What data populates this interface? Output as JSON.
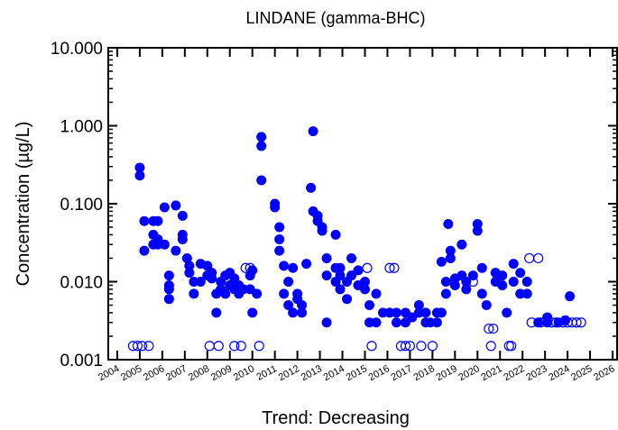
{
  "chart_data": {
    "type": "scatter",
    "title": "LINDANE (gamma-BHC)",
    "x_label": "Trend: Decreasing",
    "y_label": "Concentration (µg/L)",
    "y_log": true,
    "xlim": [
      2003.6,
      2026.2
    ],
    "ylim": [
      0.001,
      10
    ],
    "xticks": [
      2004,
      2005,
      2006,
      2007,
      2008,
      2009,
      2010,
      2011,
      2012,
      2013,
      2014,
      2015,
      2016,
      2017,
      2018,
      2019,
      2020,
      2021,
      2022,
      2023,
      2024,
      2025,
      2026
    ],
    "yticks": [
      {
        "value": 10,
        "label": "10.000"
      },
      {
        "value": 1,
        "label": "1.000"
      },
      {
        "value": 0.1,
        "label": "0.100"
      },
      {
        "value": 0.01,
        "label": "0.010"
      },
      {
        "value": 0.001,
        "label": "0.001"
      }
    ],
    "series": [
      {
        "color": "#0000ff",
        "marker": "filled",
        "x": [
          2005.0,
          2005.0,
          2005.2,
          2005.2,
          2005.6,
          2005.6,
          2005.6,
          2005.8,
          2005.8,
          2005.8,
          2006.1,
          2006.1,
          2006.3,
          2006.3,
          2006.3,
          2006.3,
          2006.6,
          2006.6,
          2006.9,
          2006.9,
          2006.9,
          2007.1,
          2007.2,
          2007.2,
          2007.4,
          2007.4,
          2007.7,
          2007.7,
          2008.0,
          2008.0,
          2008.2,
          2008.2,
          2008.4,
          2008.4,
          2008.6,
          2008.6,
          2008.8,
          2008.8,
          2009.0,
          2009.0,
          2009.2,
          2009.2,
          2009.4,
          2009.4,
          2009.6,
          2009.9,
          2009.9,
          2010.0,
          2010.0,
          2010.2,
          2010.4,
          2010.4,
          2010.4,
          2011.0,
          2011.0,
          2011.2,
          2011.2,
          2011.2,
          2011.4,
          2011.4,
          2011.6,
          2011.6,
          2011.8,
          2011.8,
          2012.0,
          2012.0,
          2012.2,
          2012.2,
          2012.4,
          2012.6,
          2012.7,
          2012.7,
          2012.9,
          2012.9,
          2013.1,
          2013.1,
          2013.3,
          2013.3,
          2013.3,
          2013.7,
          2013.7,
          2013.7,
          2013.9,
          2013.9,
          2013.9,
          2014.2,
          2014.2,
          2014.4,
          2014.4,
          2014.7,
          2014.7,
          2015.0,
          2015.0,
          2015.2,
          2015.2,
          2015.5,
          2015.5,
          2015.8,
          2016.1,
          2016.4,
          2016.4,
          2016.8,
          2016.8,
          2017.1,
          2017.4,
          2017.4,
          2017.7,
          2017.7,
          2017.9,
          2018.2,
          2018.2,
          2018.4,
          2018.4,
          2018.6,
          2018.6,
          2018.7,
          2018.8,
          2018.8,
          2019.0,
          2019.0,
          2019.3,
          2019.3,
          2019.5,
          2019.5,
          2019.8,
          2020.0,
          2020.0,
          2020.2,
          2020.2,
          2020.4,
          2020.8,
          2020.8,
          2021.1,
          2021.1,
          2021.3,
          2021.6,
          2021.6,
          2021.9,
          2021.9,
          2022.2,
          2022.2,
          2022.7,
          2023.1,
          2023.1,
          2023.6,
          2023.9,
          2024.1
        ],
        "values": [
          0.29,
          0.23,
          0.06,
          0.025,
          0.06,
          0.04,
          0.03,
          0.06,
          0.035,
          0.03,
          0.09,
          0.03,
          0.009,
          0.008,
          0.006,
          0.012,
          0.095,
          0.025,
          0.07,
          0.04,
          0.035,
          0.02,
          0.013,
          0.016,
          0.01,
          0.007,
          0.017,
          0.01,
          0.016,
          0.012,
          0.013,
          0.011,
          0.004,
          0.007,
          0.008,
          0.01,
          0.012,
          0.007,
          0.013,
          0.009,
          0.011,
          0.008,
          0.007,
          0.009,
          0.008,
          0.012,
          0.008,
          0.014,
          0.004,
          0.007,
          0.2,
          0.55,
          0.72,
          0.1,
          0.09,
          0.05,
          0.035,
          0.025,
          0.016,
          0.007,
          0.01,
          0.005,
          0.004,
          0.015,
          0.007,
          0.006,
          0.005,
          0.004,
          0.017,
          0.16,
          0.85,
          0.08,
          0.07,
          0.06,
          0.05,
          0.045,
          0.02,
          0.003,
          0.012,
          0.04,
          0.015,
          0.01,
          0.012,
          0.015,
          0.008,
          0.006,
          0.01,
          0.02,
          0.012,
          0.014,
          0.009,
          0.008,
          0.01,
          0.005,
          0.003,
          0.003,
          0.007,
          0.004,
          0.004,
          0.004,
          0.003,
          0.003,
          0.004,
          0.0035,
          0.004,
          0.005,
          0.003,
          0.004,
          0.003,
          0.004,
          0.003,
          0.018,
          0.004,
          0.01,
          0.007,
          0.055,
          0.025,
          0.02,
          0.011,
          0.009,
          0.03,
          0.012,
          0.01,
          0.008,
          0.012,
          0.045,
          0.055,
          0.015,
          0.007,
          0.005,
          0.01,
          0.013,
          0.012,
          0.009,
          0.004,
          0.01,
          0.017,
          0.013,
          0.007,
          0.007,
          0.01,
          0.003,
          0.0035,
          0.003,
          0.003,
          0.0032,
          0.0065
        ]
      },
      {
        "color": "#0000ff",
        "marker": "open",
        "x": [
          2004.7,
          2004.9,
          2005.1,
          2005.4,
          2008.1,
          2008.5,
          2009.2,
          2009.5,
          2009.7,
          2009.9,
          2010.3,
          2015.1,
          2015.3,
          2016.1,
          2016.3,
          2016.6,
          2016.8,
          2017.0,
          2017.5,
          2018.0,
          2019.8,
          2020.5,
          2020.7,
          2020.6,
          2021.4,
          2021.5,
          2022.3,
          2022.7,
          2022.4,
          2022.8,
          2023.3,
          2023.5,
          2023.8,
          2024.0,
          2024.2,
          2024.4,
          2024.6
        ],
        "values": [
          0.0015,
          0.0015,
          0.0015,
          0.0015,
          0.0015,
          0.0015,
          0.0015,
          0.0015,
          0.015,
          0.015,
          0.0015,
          0.015,
          0.0015,
          0.015,
          0.015,
          0.0015,
          0.0015,
          0.0015,
          0.0015,
          0.0015,
          0.01,
          0.0025,
          0.0025,
          0.0015,
          0.0015,
          0.0015,
          0.02,
          0.02,
          0.003,
          0.003,
          0.003,
          0.003,
          0.003,
          0.003,
          0.003,
          0.003,
          0.003
        ]
      }
    ]
  }
}
